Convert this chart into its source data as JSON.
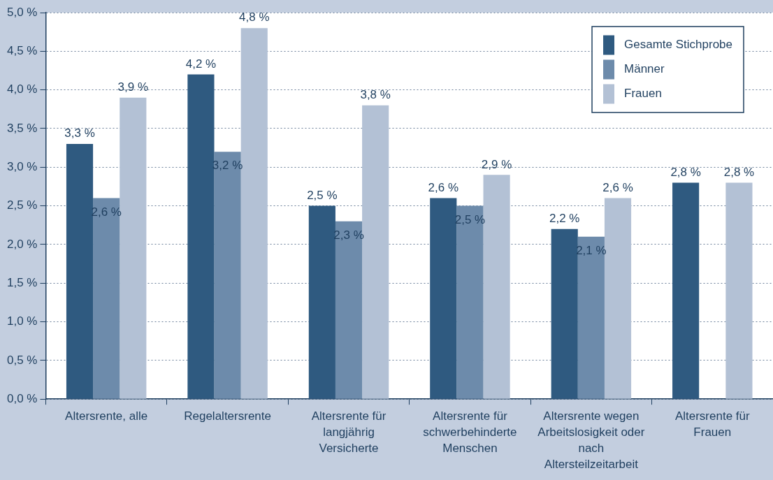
{
  "chart_data": {
    "type": "bar",
    "categories": [
      "Altersrente, alle",
      "Regelaltersrente",
      "Altersrente für langjährig Versicherte",
      "Altersrente für schwerbehinderte Menschen",
      "Altersrente wegen Arbeitslosigkeit oder nach Altersteilzeitarbeit",
      "Altersrente für Frauen"
    ],
    "series": [
      {
        "name": "Gesamte Stichprobe",
        "color": "#2f5a80",
        "values": [
          3.3,
          4.2,
          2.5,
          2.6,
          2.2,
          2.8
        ],
        "value_labels": [
          "3,3 %",
          "4,2 %",
          "2,5 %",
          "2,6 %",
          "2,2 %",
          "2,8 %"
        ]
      },
      {
        "name": "Männer",
        "color": "#6d8bab",
        "values": [
          2.6,
          3.2,
          2.3,
          2.5,
          2.1,
          null
        ],
        "value_labels": [
          "2,6 %",
          "3,2 %",
          "2,3 %",
          "2,5 %",
          "2,1 %",
          null
        ]
      },
      {
        "name": "Frauen",
        "color": "#b3c1d5",
        "values": [
          3.9,
          4.8,
          3.8,
          2.9,
          2.6,
          2.8
        ],
        "value_labels": [
          "3,9 %",
          "4,8 %",
          "3,8 %",
          "2,9 %",
          "2,6 %",
          "2,8 %"
        ]
      }
    ],
    "ylim": [
      0,
      5
    ],
    "yticks": [
      {
        "value": 0,
        "label": "0,0 %"
      },
      {
        "value": 0.5,
        "label": "0,5 %"
      },
      {
        "value": 1,
        "label": "1,0 %"
      },
      {
        "value": 1.5,
        "label": "1,5 %"
      },
      {
        "value": 2,
        "label": "2,0 %"
      },
      {
        "value": 2.5,
        "label": "2,5 %"
      },
      {
        "value": 3,
        "label": "3,0 %"
      },
      {
        "value": 3.5,
        "label": "3,5 %"
      },
      {
        "value": 4,
        "label": "4,0 %"
      },
      {
        "value": 4.5,
        "label": "4,5 %"
      },
      {
        "value": 5,
        "label": "5,0 %"
      }
    ],
    "grid": "y",
    "legend": "top right"
  }
}
